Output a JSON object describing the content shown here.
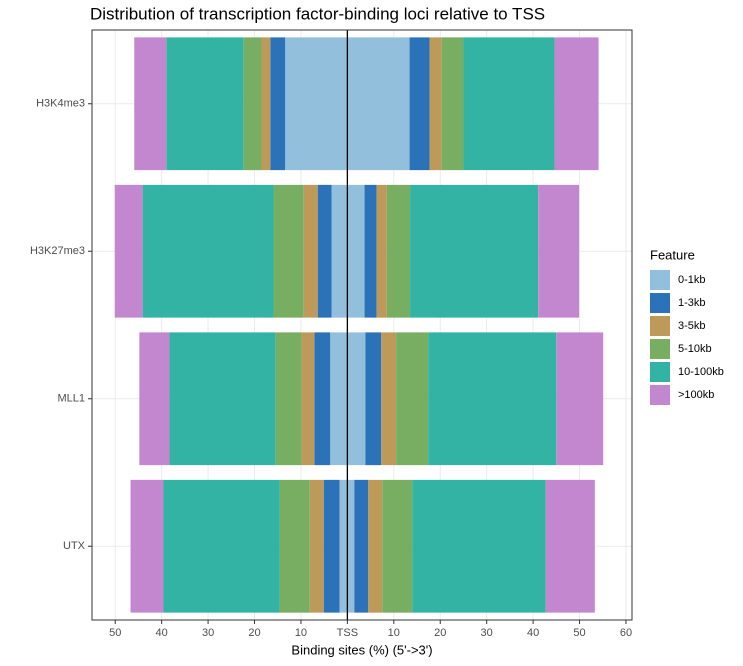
{
  "chart_data": {
    "type": "diverging-bar",
    "title": "Distribution of transcription factor-binding loci relative to TSS",
    "x_label": "Binding sites (%) (5'->3')",
    "legend_title": "Feature",
    "categories": [
      "H3K4me3",
      "H3K27me3",
      "MLL1",
      "UTX"
    ],
    "series": [
      {
        "name": "0-1kb",
        "color": "#92bfdb",
        "upstream": [
          -13.4,
          -3.4,
          -3.7,
          -1.7
        ],
        "downstream": [
          13.4,
          3.7,
          3.9,
          1.5
        ]
      },
      {
        "name": "1-3kb",
        "color": "#2c72b8",
        "upstream": [
          -3.2,
          -3.0,
          -3.4,
          -3.4
        ],
        "downstream": [
          4.3,
          2.6,
          3.4,
          3.0
        ]
      },
      {
        "name": "3-5kb",
        "color": "#bd9a5a",
        "upstream": [
          -1.9,
          -3.0,
          -2.8,
          -3.0
        ],
        "downstream": [
          2.6,
          2.2,
          3.2,
          3.0
        ]
      },
      {
        "name": "5-10kb",
        "color": "#77ae61",
        "upstream": [
          -3.9,
          -6.5,
          -5.6,
          -6.5
        ],
        "downstream": [
          4.7,
          5.0,
          6.9,
          6.5
        ]
      },
      {
        "name": "10-100kb",
        "color": "#33b3a4",
        "upstream": [
          -16.6,
          -28.2,
          -22.8,
          -25.0
        ],
        "downstream": [
          19.6,
          27.6,
          27.6,
          28.7
        ]
      },
      {
        "name": ">100kb",
        "color": "#c387d0",
        "upstream": [
          -6.9,
          -6.0,
          -6.5,
          -7.1
        ],
        "downstream": [
          9.5,
          8.8,
          10.1,
          10.6
        ]
      }
    ],
    "xlim": [
      -55,
      61.3
    ],
    "xticks": [
      {
        "value": -50,
        "label": "50"
      },
      {
        "value": -40,
        "label": "40"
      },
      {
        "value": -30,
        "label": "30"
      },
      {
        "value": -20,
        "label": "20"
      },
      {
        "value": -10,
        "label": "10"
      },
      {
        "value": 0,
        "label": "TSS"
      },
      10,
      20,
      30,
      40,
      50,
      60
    ],
    "grid": true
  }
}
